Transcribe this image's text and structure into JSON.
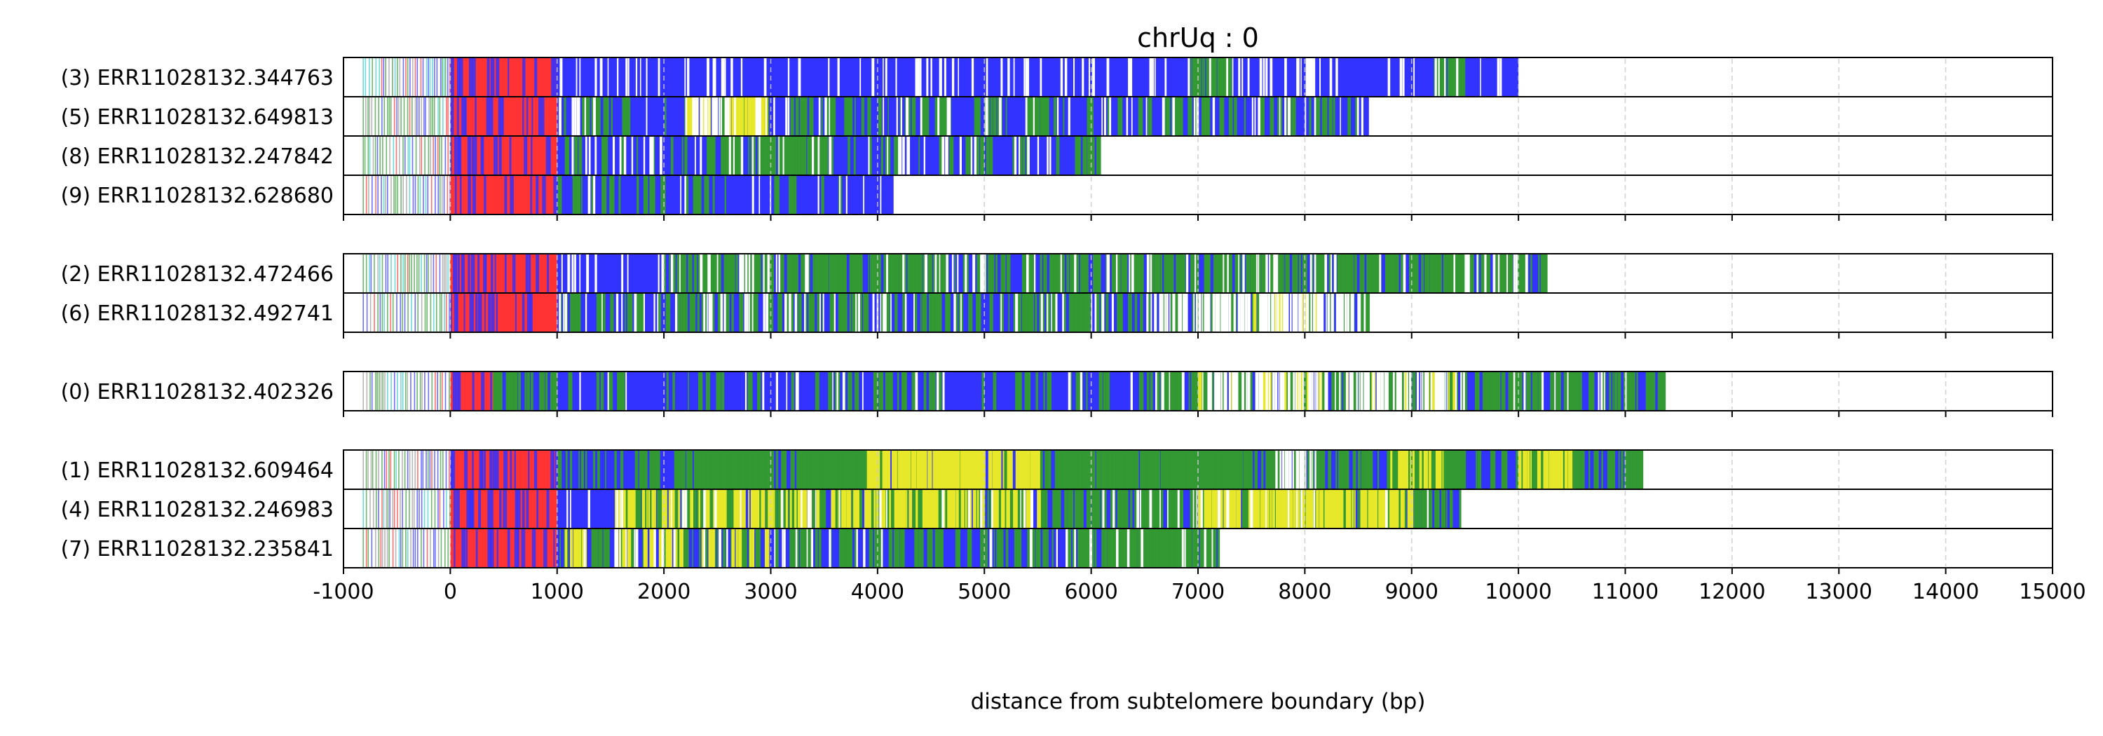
{
  "chart_data": {
    "type": "bar",
    "title": "chrUq : 0",
    "xlabel": "distance from subtelomere boundary (bp)",
    "ylabel": "",
    "xlim": [
      -1000,
      15000
    ],
    "x_ticks": [
      "-1000",
      "0",
      "1000",
      "2000",
      "3000",
      "4000",
      "5000",
      "6000",
      "7000",
      "8000",
      "9000",
      "10000",
      "11000",
      "12000",
      "13000",
      "14000",
      "15000"
    ],
    "grid": "vertical dashed",
    "colors": {
      "red": "#ff3333",
      "blue": "#3333ff",
      "green": "#339933",
      "yellow": "#e8e82a",
      "cyan": "#33cccc",
      "white": "#ffffff",
      "grid": "#cccccc"
    },
    "groups": [
      {
        "reads": [
          {
            "label": "(3) ERR11028132.344763",
            "start": -1000,
            "end": 10000,
            "red": [
              0,
              1000
            ],
            "green_zones": [
              [
                6900,
                7300,
                0.4
              ],
              [
                9200,
                9500,
                0.4
              ]
            ],
            "yellow_zones": [],
            "white_zones": [
              [
                1000,
                10000,
                0.08
              ]
            ]
          },
          {
            "label": "(5) ERR11028132.649813",
            "start": -1000,
            "end": 8600,
            "red": [
              0,
              1000
            ],
            "green_zones": [
              [
                1000,
                8600,
                0.12
              ]
            ],
            "yellow_zones": [
              [
                2200,
                3000,
                0.3
              ]
            ],
            "white_zones": [
              [
                2200,
                3000,
                0.3
              ],
              [
                1000,
                8600,
                0.06
              ]
            ]
          },
          {
            "label": "(8) ERR11028132.247842",
            "start": -1000,
            "end": 6050,
            "red": [
              0,
              1000
            ],
            "green_zones": [
              [
                2500,
                3500,
                0.3
              ],
              [
                1000,
                6050,
                0.08
              ]
            ],
            "yellow_zones": [],
            "white_zones": [
              [
                1000,
                6050,
                0.06
              ]
            ]
          },
          {
            "label": "(9) ERR11028132.628680",
            "start": -1000,
            "end": 4150,
            "red": [
              0,
              1000
            ],
            "green_zones": [
              [
                1000,
                4150,
                0.05
              ]
            ],
            "yellow_zones": [],
            "white_zones": [
              [
                1000,
                4150,
                0.03
              ]
            ]
          }
        ]
      },
      {
        "reads": [
          {
            "label": "(2) ERR11028132.472466",
            "start": -1000,
            "end": 10250,
            "red": [
              0,
              1000
            ],
            "green_zones": [
              [
                2000,
                10250,
                0.35
              ]
            ],
            "yellow_zones": [],
            "white_zones": [
              [
                1000,
                10250,
                0.05
              ]
            ]
          },
          {
            "label": "(6) ERR11028132.492741",
            "start": -1000,
            "end": 8600,
            "red": [
              0,
              1000
            ],
            "green_zones": [
              [
                1000,
                8600,
                0.22
              ]
            ],
            "yellow_zones": [
              [
                7500,
                8200,
                0.15
              ]
            ],
            "white_zones": [
              [
                6500,
                8500,
                0.35
              ],
              [
                1000,
                8600,
                0.08
              ]
            ]
          }
        ]
      },
      {
        "reads": [
          {
            "label": "(0) ERR11028132.402326",
            "start": -1000,
            "end": 11350,
            "red": [
              0,
              400
            ],
            "green_zones": [
              [
                400,
                1000,
                0.3
              ],
              [
                6400,
                11350,
                0.3
              ],
              [
                1000,
                6400,
                0.08
              ]
            ],
            "yellow_zones": [
              [
                7000,
                9500,
                0.08
              ]
            ],
            "white_zones": [
              [
                7000,
                9500,
                0.35
              ],
              [
                1000,
                11350,
                0.04
              ]
            ]
          }
        ]
      },
      {
        "reads": [
          {
            "label": "(1) ERR11028132.609464",
            "start": -1000,
            "end": 11150,
            "red": [
              0,
              1000
            ],
            "green_zones": [
              [
                2300,
                3000,
                0.85
              ],
              [
                3300,
                3900,
                0.8
              ],
              [
                5500,
                7500,
                0.6
              ],
              [
                8800,
                9500,
                0.7
              ],
              [
                10000,
                10600,
                0.75
              ],
              [
                1000,
                11150,
                0.2
              ]
            ],
            "yellow_zones": [
              [
                3900,
                5500,
                0.55
              ],
              [
                8800,
                9300,
                0.25
              ],
              [
                10000,
                10500,
                0.3
              ]
            ],
            "white_zones": [
              [
                7700,
                8100,
                0.3
              ]
            ]
          },
          {
            "label": "(4) ERR11028132.246983",
            "start": -1000,
            "end": 9450,
            "red": [
              0,
              1000
            ],
            "green_zones": [
              [
                1500,
                9450,
                0.35
              ]
            ],
            "yellow_zones": [
              [
                1500,
                5500,
                0.25
              ],
              [
                7000,
                9000,
                0.4
              ]
            ],
            "white_zones": [
              [
                1000,
                9450,
                0.05
              ]
            ]
          },
          {
            "label": "(7) ERR11028132.235841",
            "start": -1000,
            "end": 7200,
            "red": [
              0,
              1000
            ],
            "green_zones": [
              [
                1000,
                7200,
                0.2
              ],
              [
                6200,
                7200,
                0.5
              ]
            ],
            "yellow_zones": [
              [
                1000,
                3000,
                0.12
              ]
            ],
            "white_zones": [
              [
                1000,
                7200,
                0.05
              ]
            ]
          }
        ]
      }
    ]
  }
}
